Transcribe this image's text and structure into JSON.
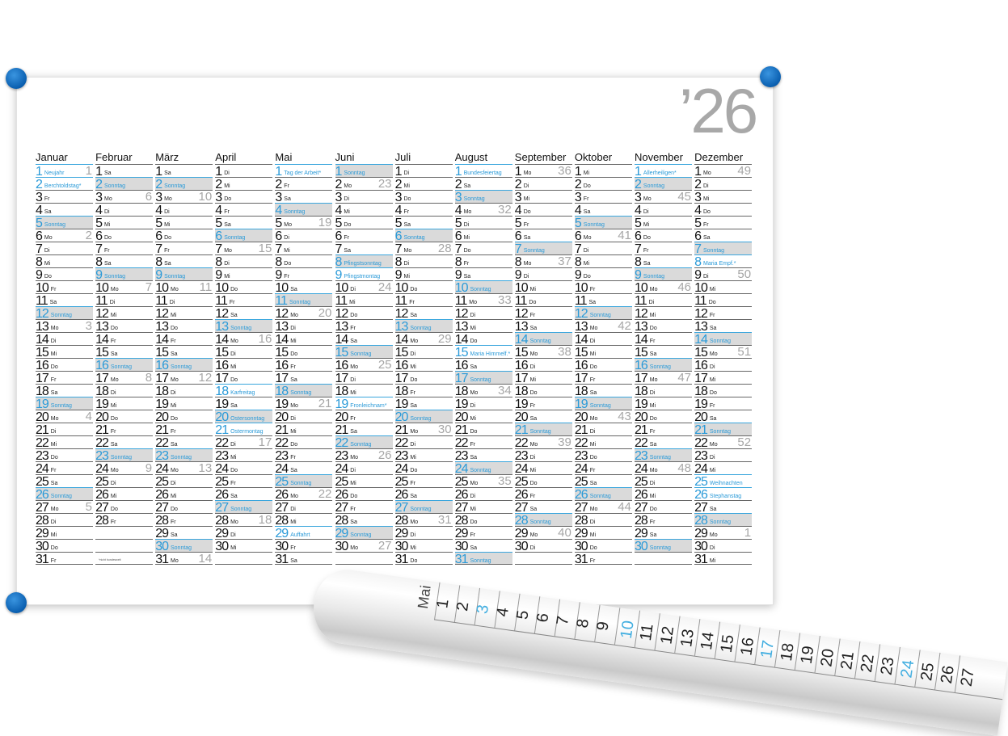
{
  "year_label": "’26",
  "weekdays": [
    "Mo",
    "Di",
    "Mi",
    "Do",
    "Fr",
    "Sa",
    "So"
  ],
  "sunday_label": "Sonntag",
  "footnote": "*nicht bundesweit",
  "colors": {
    "accent": "#2a9ad8",
    "pin": "#0a5fb0",
    "sunday_bg": "#dadada",
    "week_number": "#a6a6a6"
  },
  "months": [
    {
      "name": "Januar",
      "days": 31,
      "first_weekday": 2,
      "holidays": {
        "1": "Neujahr",
        "2": "Berchtoldstag*"
      },
      "weeks": {
        "1": 1,
        "6": 2,
        "13": 3,
        "20": 4,
        "27": 5
      }
    },
    {
      "name": "Februar",
      "days": 28,
      "first_weekday": 5,
      "holidays": {},
      "weeks": {
        "3": 6,
        "10": 7,
        "17": 8,
        "24": 9
      }
    },
    {
      "name": "März",
      "days": 31,
      "first_weekday": 5,
      "holidays": {},
      "weeks": {
        "3": 10,
        "10": 11,
        "17": 12,
        "24": 13,
        "31": 14
      }
    },
    {
      "name": "April",
      "days": 30,
      "first_weekday": 1,
      "holidays": {
        "18": "Karfreitag",
        "20": "Ostersonntag",
        "21": "Ostermontag"
      },
      "weeks": {
        "7": 15,
        "14": 16,
        "22": 17,
        "28": 18
      }
    },
    {
      "name": "Mai",
      "days": 31,
      "first_weekday": 3,
      "holidays": {
        "1": "Tag der Arbeit*",
        "29": "Auffahrt"
      },
      "weeks": {
        "5": 19,
        "12": 20,
        "19": 21,
        "26": 22
      }
    },
    {
      "name": "Juni",
      "days": 30,
      "first_weekday": 6,
      "holidays": {
        "8": "Pfingstsonntag",
        "9": "Pfingstmontag",
        "19": "Fronleichnam*"
      },
      "weeks": {
        "2": 23,
        "10": 24,
        "16": 25,
        "23": 26,
        "30": 27
      }
    },
    {
      "name": "Juli",
      "days": 31,
      "first_weekday": 1,
      "holidays": {},
      "weeks": {
        "7": 28,
        "14": 29,
        "21": 30,
        "28": 31
      }
    },
    {
      "name": "August",
      "days": 31,
      "first_weekday": 4,
      "holidays": {
        "1": "Bundesfeiertag",
        "15": "Maria Himmelf.*"
      },
      "weeks": {
        "4": 32,
        "11": 33,
        "18": 34,
        "25": 35
      }
    },
    {
      "name": "September",
      "days": 30,
      "first_weekday": 0,
      "holidays": {},
      "weeks": {
        "1": 36,
        "8": 37,
        "15": 38,
        "22": 39,
        "29": 40
      }
    },
    {
      "name": "Oktober",
      "days": 31,
      "first_weekday": 2,
      "holidays": {},
      "weeks": {
        "6": 41,
        "13": 42,
        "20": 43,
        "27": 44
      }
    },
    {
      "name": "November",
      "days": 30,
      "first_weekday": 5,
      "holidays": {
        "1": "Allerheiligen*"
      },
      "weeks": {
        "3": 45,
        "10": 46,
        "17": 47,
        "24": 48
      }
    },
    {
      "name": "Dezember",
      "days": 31,
      "first_weekday": 0,
      "holidays": {
        "8": "Maria Empf.*",
        "25": "Weihnachten",
        "26": "Stephanstag"
      },
      "weeks": {
        "1": 49,
        "9": 50,
        "15": 51,
        "22": 52,
        "29": 1
      }
    }
  ],
  "roll": {
    "month": "Mai",
    "days": 27,
    "first_weekday": 4
  }
}
